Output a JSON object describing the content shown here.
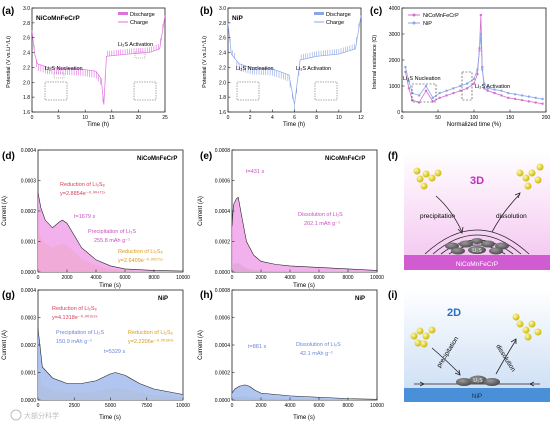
{
  "panels": {
    "a": {
      "letter": "(a)",
      "title": "NiCoMnFeCrP",
      "ylabel": "Potential (V vs.Li⁺/Li)",
      "xlabel": "Time (h)",
      "yticks": [
        "1.6",
        "1.8",
        "2.0",
        "2.2",
        "2.4",
        "2.6",
        "2.8",
        "3.0"
      ],
      "xticks": [
        "0",
        "5",
        "10",
        "15",
        "20",
        "25"
      ],
      "legend": [
        "Discharge",
        "Charge"
      ],
      "ann1": "Li₂S Nucleation",
      "ann2": "Li₂S Activation",
      "color": "#e070e0"
    },
    "b": {
      "letter": "(b)",
      "title": "NiP",
      "ylabel": "Potential (V vs.Li⁺/Li)",
      "xlabel": "Time (h)",
      "yticks": [
        "1.6",
        "1.8",
        "2.0",
        "2.2",
        "2.4",
        "2.6",
        "2.8",
        "3.0"
      ],
      "xticks": [
        "0",
        "2",
        "4",
        "6",
        "8",
        "10",
        "12"
      ],
      "legend": [
        "Discharge",
        "Charge"
      ],
      "ann1": "Li₂S Nucleation",
      "ann2": "Li₂S Activation",
      "color": "#8aa6e8"
    },
    "c": {
      "letter": "(c)",
      "ylabel": "Internal resistance (Ω)",
      "xlabel": "Normalized time (%)",
      "yticks": [
        "0",
        "1000",
        "2000",
        "3000",
        "4000"
      ],
      "xticks": [
        "0",
        "50",
        "100",
        "150",
        "200"
      ],
      "legend": [
        "NiCoMnFeCrP",
        "NiP"
      ],
      "ann1": "Li₂S Nucleation",
      "ann2": "Li₂S Activation",
      "colors": [
        "#d070d0",
        "#8aa6e8"
      ]
    },
    "d": {
      "letter": "(d)",
      "title": "NiCoMnFeCrP",
      "ylabel": "Current (A)",
      "xlabel": "Time (s)",
      "yticks": [
        "0.0000",
        "0.0001",
        "0.0002",
        "0.0003",
        "0.0004"
      ],
      "xticks": [
        "0",
        "2000",
        "4000",
        "6000",
        "8000",
        "10000"
      ],
      "red1": "Reduction of Li₂S₈",
      "red1eq": "y=2.8854e⁻⁰·⁰⁰⁴⁷¹ˣ",
      "peak": "t=1679 s",
      "prec1": "Precipitation of Li₂S",
      "prec2": "255.8 mAh g⁻¹",
      "red2": "Reduction of Li₂S₈",
      "red2eq": "y=2.6409e⁻⁰·⁰⁰²⁷⁵ˣ"
    },
    "e": {
      "letter": "(e)",
      "title": "NiCoMnFeCrP",
      "ylabel": "Current (A)",
      "xlabel": "Time (s)",
      "yticks": [
        "0.0000",
        "0.0002",
        "0.0004",
        "0.0006",
        "0.0008"
      ],
      "xticks": [
        "0",
        "2000",
        "4000",
        "6000",
        "8000",
        "10000"
      ],
      "peak": "t=431 s",
      "diss1": "Dissolution of Li₂S",
      "diss2": "202.1 mAh g⁻¹"
    },
    "f": {
      "letter": "(f)",
      "label3d": "3D",
      "prec": "precipitation",
      "diss": "dissolution",
      "lis": "Li₂S",
      "sub": "NiCoMnFeCrP"
    },
    "g": {
      "letter": "(g)",
      "title": "NiP",
      "ylabel": "Current (A)",
      "xlabel": "Time (s)",
      "yticks": [
        "0.0000",
        "0.0001",
        "0.0002",
        "0.0003",
        "0.0004"
      ],
      "xticks": [
        "0",
        "2500",
        "5000",
        "7500",
        "10000"
      ],
      "red1": "Reduction of Li₂S₈",
      "red1eq": "y=4.1318e⁻⁰·⁰⁰¹⁶⁹ˣ",
      "prec1": "Precipitation of Li₂S",
      "prec2": "150.9 mAh g⁻¹",
      "red2": "Reduction of Li₂S₈",
      "red2eq": "y=2.2206e⁻⁰·⁰⁰¹⁸⁰ˣ",
      "peak": "t=5329 s"
    },
    "h": {
      "letter": "(h)",
      "title": "NiP",
      "ylabel": "Current (A)",
      "xlabel": "Time (s)",
      "yticks": [
        "0.0000",
        "0.0002",
        "0.0004",
        "0.0006",
        "0.0008"
      ],
      "xticks": [
        "0",
        "2000",
        "4000",
        "6000",
        "8000",
        "10000"
      ],
      "peak": "t=881 s",
      "diss1": "Dissolution of Li₂S",
      "diss2": "42.1 mAh g⁻¹"
    },
    "i": {
      "letter": "(i)",
      "label2d": "2D",
      "prec": "precipitation",
      "diss": "dissolution",
      "lis": "Li₂S",
      "sub": "NiP"
    }
  },
  "watermark": "大部分科学",
  "chart_data": [
    {
      "type": "line",
      "panel": "a",
      "xlabel": "Time (h)",
      "ylabel": "Potential (V vs.Li⁺/Li)",
      "xlim": [
        0,
        25
      ],
      "ylim": [
        1.6,
        3.0
      ],
      "series": [
        {
          "name": "Discharge",
          "x": [
            0,
            0.5,
            1,
            3,
            6,
            9,
            12,
            13,
            13.5,
            14,
            18,
            22,
            24,
            25
          ],
          "y": [
            2.7,
            2.38,
            2.25,
            2.2,
            2.19,
            2.18,
            2.15,
            2.05,
            1.7,
            2.35,
            2.38,
            2.4,
            2.45,
            2.9
          ]
        }
      ]
    },
    {
      "type": "line",
      "panel": "b",
      "xlabel": "Time (h)",
      "ylabel": "Potential (V vs.Li⁺/Li)",
      "xlim": [
        0,
        12
      ],
      "ylim": [
        1.6,
        3.0
      ],
      "series": [
        {
          "name": "Discharge",
          "x": [
            0,
            0.3,
            1,
            2,
            4,
            5.5,
            6,
            6.5,
            8,
            10,
            11.5,
            12
          ],
          "y": [
            2.8,
            2.38,
            2.25,
            2.2,
            2.18,
            2.1,
            1.7,
            2.3,
            2.35,
            2.38,
            2.45,
            2.9
          ]
        }
      ]
    },
    {
      "type": "line",
      "panel": "c",
      "xlabel": "Normalized time (%)",
      "ylabel": "Internal resistance (Ω)",
      "xlim": [
        -5,
        205
      ],
      "ylim": [
        -100,
        4300
      ],
      "series": [
        {
          "name": "NiCoMnFeCrP",
          "x": [
            0,
            5,
            10,
            20,
            30,
            40,
            50,
            60,
            70,
            80,
            90,
            100,
            105,
            108,
            110,
            112,
            115,
            120,
            130,
            140,
            150,
            160,
            170,
            180,
            190,
            200
          ],
          "y": [
            1600,
            900,
            400,
            300,
            800,
            350,
            500,
            600,
            700,
            800,
            900,
            1100,
            1500,
            2600,
            4000,
            1800,
            900,
            800,
            700,
            600,
            500,
            450,
            400,
            350,
            300,
            250
          ]
        },
        {
          "name": "NiP",
          "x": [
            0,
            5,
            10,
            20,
            30,
            40,
            50,
            60,
            70,
            80,
            90,
            100,
            105,
            108,
            110,
            112,
            115,
            120,
            130,
            140,
            150,
            160,
            170,
            180,
            190,
            200
          ],
          "y": [
            1800,
            1200,
            700,
            600,
            1000,
            500,
            700,
            800,
            900,
            1000,
            1100,
            1300,
            1700,
            2500,
            3200,
            1700,
            1100,
            900,
            850,
            800,
            700,
            650,
            600,
            550,
            500,
            450
          ]
        }
      ]
    },
    {
      "type": "area",
      "panel": "d",
      "xlabel": "Time (s)",
      "ylabel": "Current (A)",
      "xlim": [
        0,
        10000
      ],
      "ylim": [
        0,
        0.0004
      ],
      "series": [
        {
          "name": "Precipitation of Li₂S",
          "x": [
            0,
            200,
            500,
            1000,
            1500,
            1679,
            2000,
            2500,
            3000,
            4000,
            5000,
            6000,
            8000,
            10000
          ],
          "y": [
            0.00026,
            0.00021,
            0.00017,
            0.000145,
            0.000165,
            0.00017,
            0.00016,
            0.00012,
            8e-05,
            4e-05,
            2e-05,
            1e-05,
            5e-06,
            3e-06
          ]
        }
      ]
    },
    {
      "type": "area",
      "panel": "e",
      "xlabel": "Time (s)",
      "ylabel": "Current (A)",
      "xlim": [
        0,
        10000
      ],
      "ylim": [
        0,
        0.0008
      ],
      "series": [
        {
          "name": "Dissolution of Li₂S",
          "x": [
            0,
            100,
            300,
            431,
            700,
            1000,
            1500,
            2000,
            3000,
            4000,
            6000,
            8000,
            10000
          ],
          "y": [
            0.0003,
            0.00044,
            0.00048,
            0.00049,
            0.00035,
            0.0002,
            0.00011,
            7e-05,
            5e-05,
            4e-05,
            3e-05,
            2e-05,
            1e-05
          ]
        }
      ]
    },
    {
      "type": "area",
      "panel": "g",
      "xlabel": "Time (s)",
      "ylabel": "Current (A)",
      "xlim": [
        0,
        10000
      ],
      "ylim": [
        0,
        0.0004
      ],
      "series": [
        {
          "name": "Precipitation of Li₂S",
          "x": [
            0,
            300,
            1000,
            2000,
            3000,
            4000,
            5000,
            5329,
            6000,
            7000,
            8000,
            9000,
            10000
          ],
          "y": [
            0.00026,
            0.00012,
            8e-05,
            6e-05,
            6e-05,
            7e-05,
            9.5e-05,
            0.0001,
            9e-05,
            6e-05,
            4e-05,
            3e-05,
            2e-05
          ]
        }
      ]
    },
    {
      "type": "area",
      "panel": "h",
      "xlabel": "Time (s)",
      "ylabel": "Current (A)",
      "xlim": [
        0,
        10000
      ],
      "ylim": [
        0,
        0.0008
      ],
      "series": [
        {
          "name": "Dissolution of Li₂S",
          "x": [
            0,
            200,
            500,
            881,
            1200,
            1600,
            2000,
            3000,
            4000,
            6000,
            8000,
            10000
          ],
          "y": [
            5e-05,
            8e-05,
            0.0001,
            0.00011,
            0.0001,
            7e-05,
            5e-05,
            4e-05,
            3e-05,
            2e-05,
            1e-05,
            5e-06
          ]
        }
      ]
    }
  ]
}
